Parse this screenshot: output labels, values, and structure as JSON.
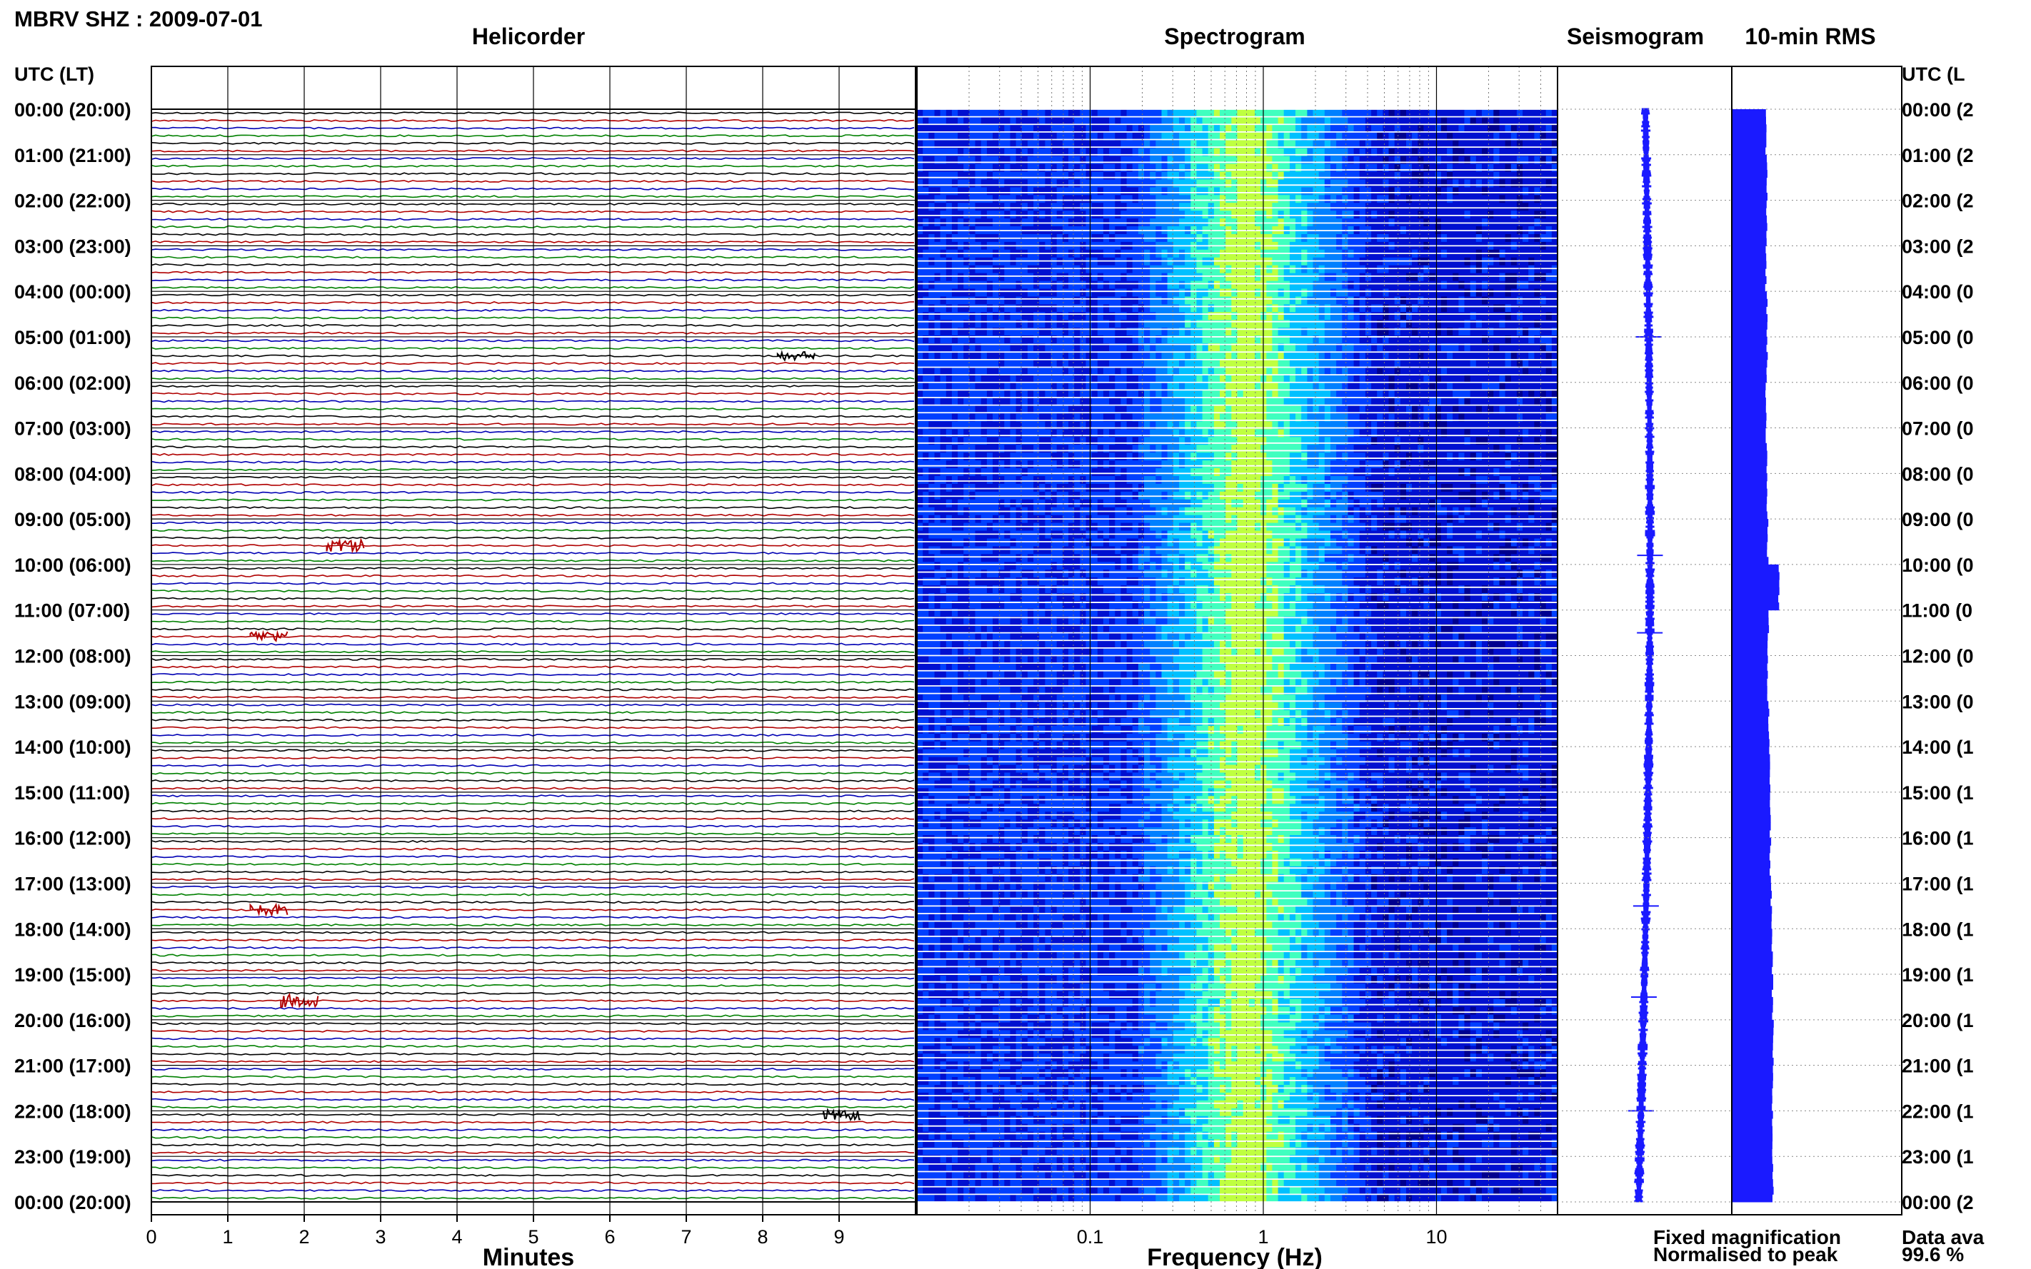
{
  "header": {
    "station_title": "MBRV SHZ : 2009-07-01",
    "utc_label_left": "UTC (LT)",
    "utc_label_right": "UTC (L"
  },
  "panels": {
    "helicorder_title": "Helicorder",
    "spectrogram_title": "Spectrogram",
    "seismogram_title": "Seismogram",
    "rms_title": "10-min RMS"
  },
  "axes": {
    "minutes_label": "Minutes",
    "frequency_label": "Frequency (Hz)"
  },
  "legend": {
    "fixed_text": "Fixed magnification",
    "fixed_color": "#1a1aff",
    "normalised_text": "Normalised to peak",
    "normalised_color": "#ff0000"
  },
  "availability": {
    "label": "Data ava",
    "value": "99.6 %"
  },
  "chart_data": {
    "type": "heatmap",
    "time_labels_left": [
      "00:00 (20:00)",
      "01:00 (21:00)",
      "02:00 (22:00)",
      "03:00 (23:00)",
      "04:00 (00:00)",
      "05:00 (01:00)",
      "06:00 (02:00)",
      "07:00 (03:00)",
      "08:00 (04:00)",
      "09:00 (05:00)",
      "10:00 (06:00)",
      "11:00 (07:00)",
      "12:00 (08:00)",
      "13:00 (09:00)",
      "14:00 (10:00)",
      "15:00 (11:00)",
      "16:00 (12:00)",
      "17:00 (13:00)",
      "18:00 (14:00)",
      "19:00 (15:00)",
      "20:00 (16:00)",
      "21:00 (17:00)",
      "22:00 (18:00)",
      "23:00 (19:00)",
      "00:00 (20:00)"
    ],
    "time_labels_right": [
      "00:00 (2",
      "01:00 (2",
      "02:00 (2",
      "03:00 (2",
      "04:00 (0",
      "05:00 (0",
      "06:00 (0",
      "07:00 (0",
      "08:00 (0",
      "09:00 (0",
      "10:00 (0",
      "11:00 (0",
      "12:00 (0",
      "13:00 (0",
      "14:00 (1",
      "15:00 (1",
      "16:00 (1",
      "17:00 (1",
      "18:00 (1",
      "19:00 (1",
      "20:00 (1",
      "21:00 (1",
      "22:00 (1",
      "23:00 (1",
      "00:00 (2"
    ],
    "helicorder": {
      "x_ticks": [
        0,
        1,
        2,
        3,
        4,
        5,
        6,
        7,
        8,
        9
      ],
      "xlim": [
        0,
        10
      ],
      "traces_per_hour": 6,
      "trace_colors": [
        "#000000",
        "#b00000",
        "#0000b4",
        "#008000"
      ],
      "events": [
        {
          "hour": 5,
          "trace": 2,
          "minute": 8.4,
          "amplitude": 2.0
        },
        {
          "hour": 9,
          "trace": 3,
          "minute": 2.5,
          "amplitude": 3.0
        },
        {
          "hour": 11,
          "trace": 3,
          "minute": 1.5,
          "amplitude": 2.5
        },
        {
          "hour": 17,
          "trace": 3,
          "minute": 1.5,
          "amplitude": 2.5
        },
        {
          "hour": 19,
          "trace": 3,
          "minute": 1.9,
          "amplitude": 3.0
        },
        {
          "hour": 22,
          "trace": 0,
          "minute": 9.0,
          "amplitude": 2.5
        }
      ]
    },
    "spectrogram": {
      "x_scale": "log",
      "xlim": [
        0.01,
        50
      ],
      "x_tick_labels": [
        "0.1",
        "1",
        "10"
      ],
      "x_ticks": [
        0.1,
        1,
        10
      ],
      "peak_frequency_hz": 0.8,
      "colormap": [
        "#00008f",
        "#0010d0",
        "#0040ff",
        "#0080ff",
        "#00c0ff",
        "#40ffbf",
        "#bfff40"
      ]
    },
    "seismogram": {
      "color": "#1a1aff",
      "spikes_hours": [
        5,
        9.8,
        11.5,
        17.5,
        19.5,
        22
      ]
    },
    "rms": {
      "color": "#1a1aff",
      "values": [
        0.8,
        0.82,
        0.81,
        0.8,
        0.82,
        0.83,
        0.8,
        0.81,
        0.82,
        0.84,
        1.1,
        0.85,
        0.84,
        0.86,
        0.88,
        0.9,
        0.9,
        0.92,
        0.94,
        0.95,
        0.96,
        0.95,
        0.95,
        0.96
      ]
    }
  }
}
